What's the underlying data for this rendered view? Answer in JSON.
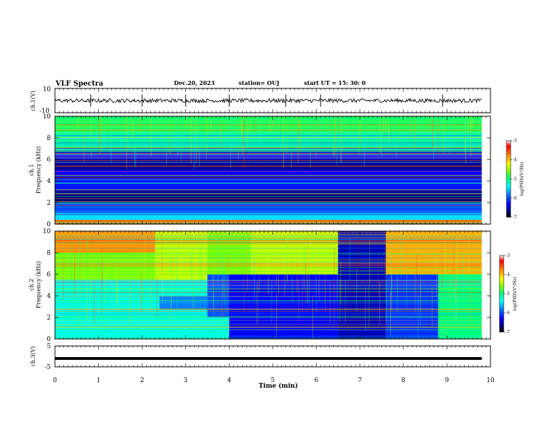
{
  "header": {
    "title": "VLF Spectra",
    "date": "Dec.20, 2023",
    "station": "station= OUJ",
    "start_ut": "start  UT =   15: 30: 0"
  },
  "chart_data": [
    {
      "type": "line",
      "panel": "ch1-waveform",
      "ylabel": "ch.1(V)",
      "ylim": [
        -10,
        10
      ],
      "y_tick_labels": [
        "10",
        "-10"
      ],
      "x": [
        0,
        1,
        2,
        3,
        4,
        5,
        6,
        7,
        8,
        9,
        9.8
      ],
      "y": [
        0,
        0,
        0,
        0,
        0,
        0,
        0,
        0,
        0,
        0,
        0
      ],
      "spikes_x": [
        0.82,
        2.0,
        3.0,
        4.0,
        5.3,
        6.1,
        8.9
      ],
      "color": "#000000"
    },
    {
      "type": "heatmap",
      "panel": "ch1-spectrogram",
      "ylabel": "ch.1\nFrequency (kHz)",
      "ylabel_line1": "ch.1",
      "ylabel_line2": "Frequency (kHz)",
      "ylim": [
        0,
        10
      ],
      "y_tick_labels": [
        "0",
        "2",
        "4",
        "6",
        "8",
        "10"
      ],
      "xlim": [
        0,
        10
      ],
      "data_end_min": 9.8,
      "colorbar": {
        "label": "log(PSD)(V²/Hz)",
        "range": [
          -7,
          -3
        ],
        "tick_labels": [
          "-3",
          "-4",
          "-5",
          "-6",
          "-7"
        ],
        "colors": [
          "#000000",
          "#000080",
          "#0000ff",
          "#0080ff",
          "#00ffff",
          "#00ff80",
          "#80ff00",
          "#ffff00",
          "#ff8000",
          "#ff0000",
          "#ffffff"
        ]
      },
      "bands": [
        {
          "f0": 0.0,
          "f1": 0.4,
          "level": -3.6
        },
        {
          "f0": 0.4,
          "f1": 1.0,
          "level": -5.5
        },
        {
          "f0": 1.0,
          "f1": 2.0,
          "level": -6.0
        },
        {
          "f0": 2.0,
          "f1": 3.0,
          "level": -6.7
        },
        {
          "f0": 3.0,
          "f1": 4.0,
          "level": -6.2
        },
        {
          "f0": 4.0,
          "f1": 5.0,
          "level": -6.3
        },
        {
          "f0": 5.0,
          "f1": 6.0,
          "level": -6.6
        },
        {
          "f0": 6.0,
          "f1": 6.8,
          "level": -6.3
        },
        {
          "f0": 6.8,
          "f1": 8.5,
          "level": -5.1
        },
        {
          "f0": 8.5,
          "f1": 10.0,
          "level": -4.9
        }
      ]
    },
    {
      "type": "heatmap",
      "panel": "ch2-spectrogram",
      "ylabel": "ch.2\nFrequency (kHz)",
      "ylabel_line1": "ch.2",
      "ylabel_line2": "Frequency (kHz)",
      "ylim": [
        0,
        10
      ],
      "y_tick_labels": [
        "0",
        "2",
        "4",
        "6",
        "8",
        "10"
      ],
      "xlim": [
        0,
        10
      ],
      "data_end_min": 9.8,
      "colorbar": {
        "label": "log(PSD)(V²/Hz)",
        "range": [
          -7,
          -3
        ],
        "tick_labels": [
          "-3",
          "-4",
          "-5",
          "-6",
          "-7"
        ],
        "colors": [
          "#000000",
          "#000080",
          "#0000ff",
          "#0080ff",
          "#00ffff",
          "#00ff80",
          "#80ff00",
          "#ffff00",
          "#ff8000",
          "#ff0000",
          "#ffffff"
        ]
      },
      "regions": [
        {
          "t0": 0.0,
          "t1": 2.3,
          "f0": 8.0,
          "f1": 10.0,
          "level": -3.8
        },
        {
          "t0": 0.0,
          "t1": 2.3,
          "f0": 5.5,
          "f1": 8.0,
          "level": -4.6
        },
        {
          "t0": 0.0,
          "t1": 4.0,
          "f0": 0.0,
          "f1": 5.5,
          "level": -5.3
        },
        {
          "t0": 2.3,
          "t1": 3.5,
          "f0": 5.5,
          "f1": 10.0,
          "level": -4.4
        },
        {
          "t0": 2.4,
          "t1": 3.5,
          "f0": 2.7,
          "f1": 4.0,
          "level": -5.8
        },
        {
          "t0": 3.5,
          "t1": 4.5,
          "f0": 6.0,
          "f1": 10.0,
          "level": -4.6
        },
        {
          "t0": 3.5,
          "t1": 4.8,
          "f0": 2.0,
          "f1": 6.0,
          "level": -6.0
        },
        {
          "t0": 4.0,
          "t1": 6.5,
          "f0": 0.0,
          "f1": 6.0,
          "level": -6.3
        },
        {
          "t0": 4.5,
          "t1": 6.5,
          "f0": 6.0,
          "f1": 10.0,
          "level": -4.4
        },
        {
          "t0": 6.5,
          "t1": 7.6,
          "f0": 0.0,
          "f1": 10.0,
          "level": -6.5
        },
        {
          "t0": 7.6,
          "t1": 8.8,
          "f0": 0.0,
          "f1": 6.0,
          "level": -6.1
        },
        {
          "t0": 7.6,
          "t1": 9.8,
          "f0": 6.0,
          "f1": 10.0,
          "level": -3.9
        },
        {
          "t0": 8.8,
          "t1": 9.8,
          "f0": 0.0,
          "f1": 6.0,
          "level": -5.0
        }
      ]
    },
    {
      "type": "line",
      "panel": "ch3-waveform",
      "ylabel": "ch.3(V)",
      "ylim": [
        -5,
        5
      ],
      "y_tick_labels": [
        "5",
        "-5"
      ],
      "x": [
        0,
        9.8
      ],
      "y": [
        -1,
        -1
      ],
      "color": "#000000"
    }
  ],
  "xaxis": {
    "label": "Time  (min)",
    "range": [
      0,
      10
    ],
    "tick_labels": [
      "0",
      "1",
      "2",
      "3",
      "4",
      "5",
      "6",
      "7",
      "8",
      "9",
      "10"
    ]
  }
}
